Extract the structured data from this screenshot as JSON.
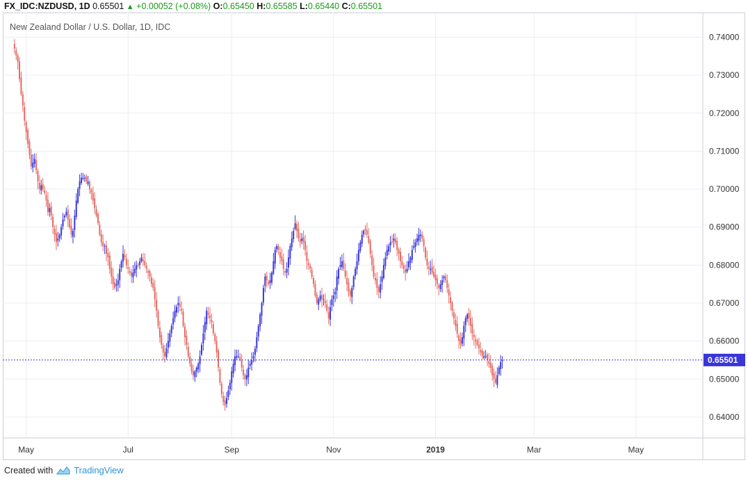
{
  "header": {
    "symbol": "FX_IDC:NZDUSD, 1D",
    "last": "0.65501",
    "change": "+0.00052 (+0.08%)",
    "o_label": "O:",
    "o": "0.65450",
    "h_label": "H:",
    "h": "0.65585",
    "l_label": "L:",
    "l": "0.65440",
    "c_label": "C:",
    "c": "0.65501"
  },
  "subtitle": "New Zealand Dollar / U.S. Dollar, 1D, IDC",
  "price_label": "0.65501",
  "footer": {
    "created_with": "Created with",
    "brand": "TradingView"
  },
  "colors": {
    "up": "#3a36d8",
    "down": "#e56a63",
    "grid": "#e9edf2",
    "last_line": "#3a36d8"
  },
  "chart_data": {
    "type": "candlestick",
    "title": "New Zealand Dollar / U.S. Dollar, 1D, IDC",
    "xlabel": "",
    "ylabel": "",
    "ylim": [
      0.6345,
      0.7465
    ],
    "y_ticks": [
      "0.64000",
      "0.65000",
      "0.66000",
      "0.67000",
      "0.68000",
      "0.69000",
      "0.70000",
      "0.71000",
      "0.72000",
      "0.73000",
      "0.74000"
    ],
    "x_ticks": [
      {
        "label": "May",
        "day": 7
      },
      {
        "label": "Jul",
        "day": 68
      },
      {
        "label": "Sep",
        "day": 130
      },
      {
        "label": "Nov",
        "day": 191
      },
      {
        "label": "2019",
        "day": 252
      },
      {
        "label": "Mar",
        "day": 311
      },
      {
        "label": "May",
        "day": 372
      }
    ],
    "day_range": [
      -7,
      412
    ],
    "candle_interval_days": 1,
    "last_price": 0.65501,
    "grid": true,
    "closes": [
      0.737,
      0.7352,
      0.7335,
      0.729,
      0.725,
      0.722,
      0.718,
      0.715,
      0.712,
      0.709,
      0.706,
      0.707,
      0.708,
      0.705,
      0.702,
      0.7,
      0.701,
      0.7,
      0.699,
      0.697,
      0.694,
      0.695,
      0.693,
      0.69,
      0.688,
      0.686,
      0.687,
      0.688,
      0.69,
      0.692,
      0.693,
      0.694,
      0.692,
      0.69,
      0.688,
      0.689,
      0.693,
      0.697,
      0.7,
      0.702,
      0.703,
      0.703,
      0.703,
      0.702,
      0.702,
      0.7,
      0.699,
      0.697,
      0.695,
      0.693,
      0.691,
      0.688,
      0.686,
      0.685,
      0.685,
      0.683,
      0.682,
      0.679,
      0.677,
      0.675,
      0.674,
      0.675,
      0.676,
      0.679,
      0.681,
      0.683,
      0.682,
      0.68,
      0.679,
      0.678,
      0.677,
      0.678,
      0.679,
      0.68,
      0.68,
      0.681,
      0.682,
      0.681,
      0.68,
      0.679,
      0.678,
      0.677,
      0.675,
      0.674,
      0.671,
      0.668,
      0.664,
      0.661,
      0.659,
      0.657,
      0.656,
      0.658,
      0.66,
      0.662,
      0.664,
      0.666,
      0.668,
      0.669,
      0.67,
      0.669,
      0.668,
      0.664,
      0.661,
      0.659,
      0.656,
      0.654,
      0.652,
      0.651,
      0.652,
      0.653,
      0.654,
      0.656,
      0.659,
      0.662,
      0.665,
      0.668,
      0.667,
      0.666,
      0.665,
      0.662,
      0.66,
      0.657,
      0.653,
      0.649,
      0.646,
      0.644,
      0.643,
      0.645,
      0.647,
      0.649,
      0.652,
      0.654,
      0.656,
      0.656,
      0.656,
      0.655,
      0.653,
      0.651,
      0.65,
      0.651,
      0.653,
      0.654,
      0.655,
      0.656,
      0.658,
      0.661,
      0.664,
      0.667,
      0.67,
      0.674,
      0.677,
      0.676,
      0.675,
      0.676,
      0.678,
      0.681,
      0.684,
      0.685,
      0.684,
      0.682,
      0.681,
      0.679,
      0.678,
      0.679,
      0.682,
      0.685,
      0.687,
      0.689,
      0.691,
      0.689,
      0.687,
      0.686,
      0.687,
      0.686,
      0.684,
      0.681,
      0.68,
      0.679,
      0.677,
      0.675,
      0.672,
      0.67,
      0.671,
      0.672,
      0.671,
      0.671,
      0.67,
      0.668,
      0.666,
      0.669,
      0.671,
      0.672,
      0.673,
      0.677,
      0.679,
      0.68,
      0.681,
      0.679,
      0.677,
      0.675,
      0.673,
      0.672,
      0.674,
      0.677,
      0.679,
      0.681,
      0.684,
      0.686,
      0.688,
      0.689,
      0.689,
      0.688,
      0.686,
      0.683,
      0.68,
      0.677,
      0.676,
      0.674,
      0.673,
      0.675,
      0.677,
      0.68,
      0.682,
      0.684,
      0.685,
      0.686,
      0.686,
      0.687,
      0.686,
      0.684,
      0.683,
      0.681,
      0.68,
      0.679,
      0.678,
      0.679,
      0.681,
      0.682,
      0.684,
      0.685,
      0.686,
      0.687,
      0.688,
      0.688,
      0.687,
      0.685,
      0.682,
      0.68,
      0.679,
      0.679,
      0.678,
      0.677,
      0.676,
      0.675,
      0.674,
      0.675,
      0.676,
      0.677,
      0.676,
      0.674,
      0.672,
      0.67,
      0.668,
      0.666,
      0.664,
      0.662,
      0.66,
      0.659,
      0.661,
      0.664,
      0.666,
      0.667,
      0.666,
      0.664,
      0.662,
      0.661,
      0.66,
      0.659,
      0.658,
      0.657,
      0.656,
      0.656,
      0.656,
      0.655,
      0.654,
      0.653,
      0.651,
      0.65,
      0.649,
      0.651,
      0.653,
      0.6545,
      0.655
    ]
  }
}
